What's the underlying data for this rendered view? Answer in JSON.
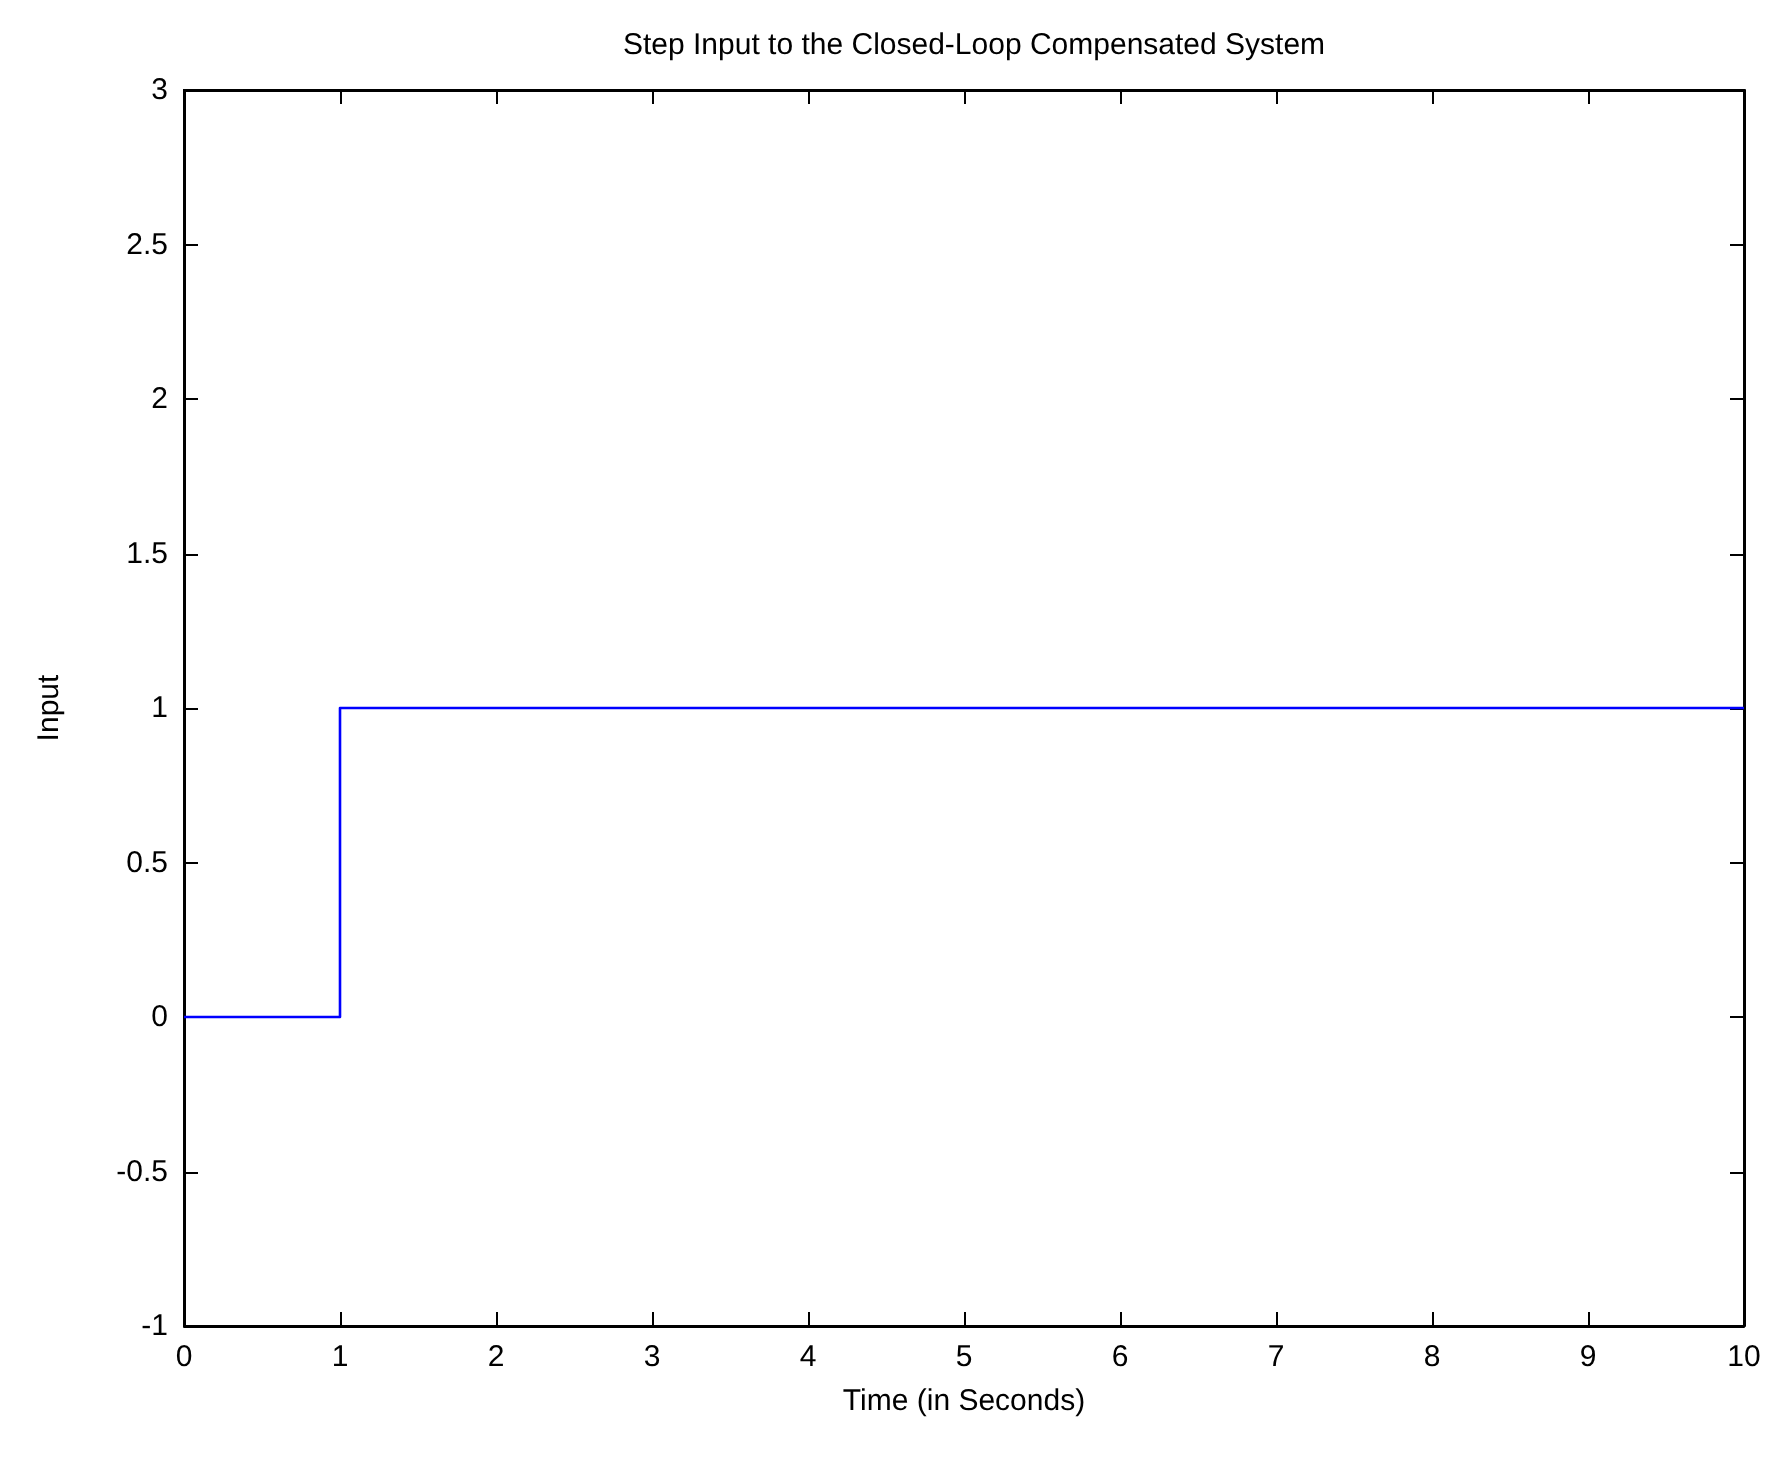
{
  "chart_data": {
    "type": "step",
    "title": "Step Input to the Closed-Loop Compensated System",
    "xlabel": "Time (in Seconds)",
    "ylabel": "Input",
    "x": [
      0,
      1,
      10
    ],
    "series": [
      {
        "color": "#0000ff",
        "values": [
          0,
          1,
          1
        ]
      }
    ],
    "xlim": [
      0,
      10
    ],
    "xticks": [
      0,
      1,
      2,
      3,
      4,
      5,
      6,
      7,
      8,
      9,
      10
    ],
    "ylim": [
      -1,
      3
    ],
    "yticks": [
      -1,
      -0.5,
      0,
      0.5,
      1,
      1.5,
      2,
      2.5,
      3
    ],
    "grid": false,
    "marker": "none",
    "line_style": "solid"
  }
}
